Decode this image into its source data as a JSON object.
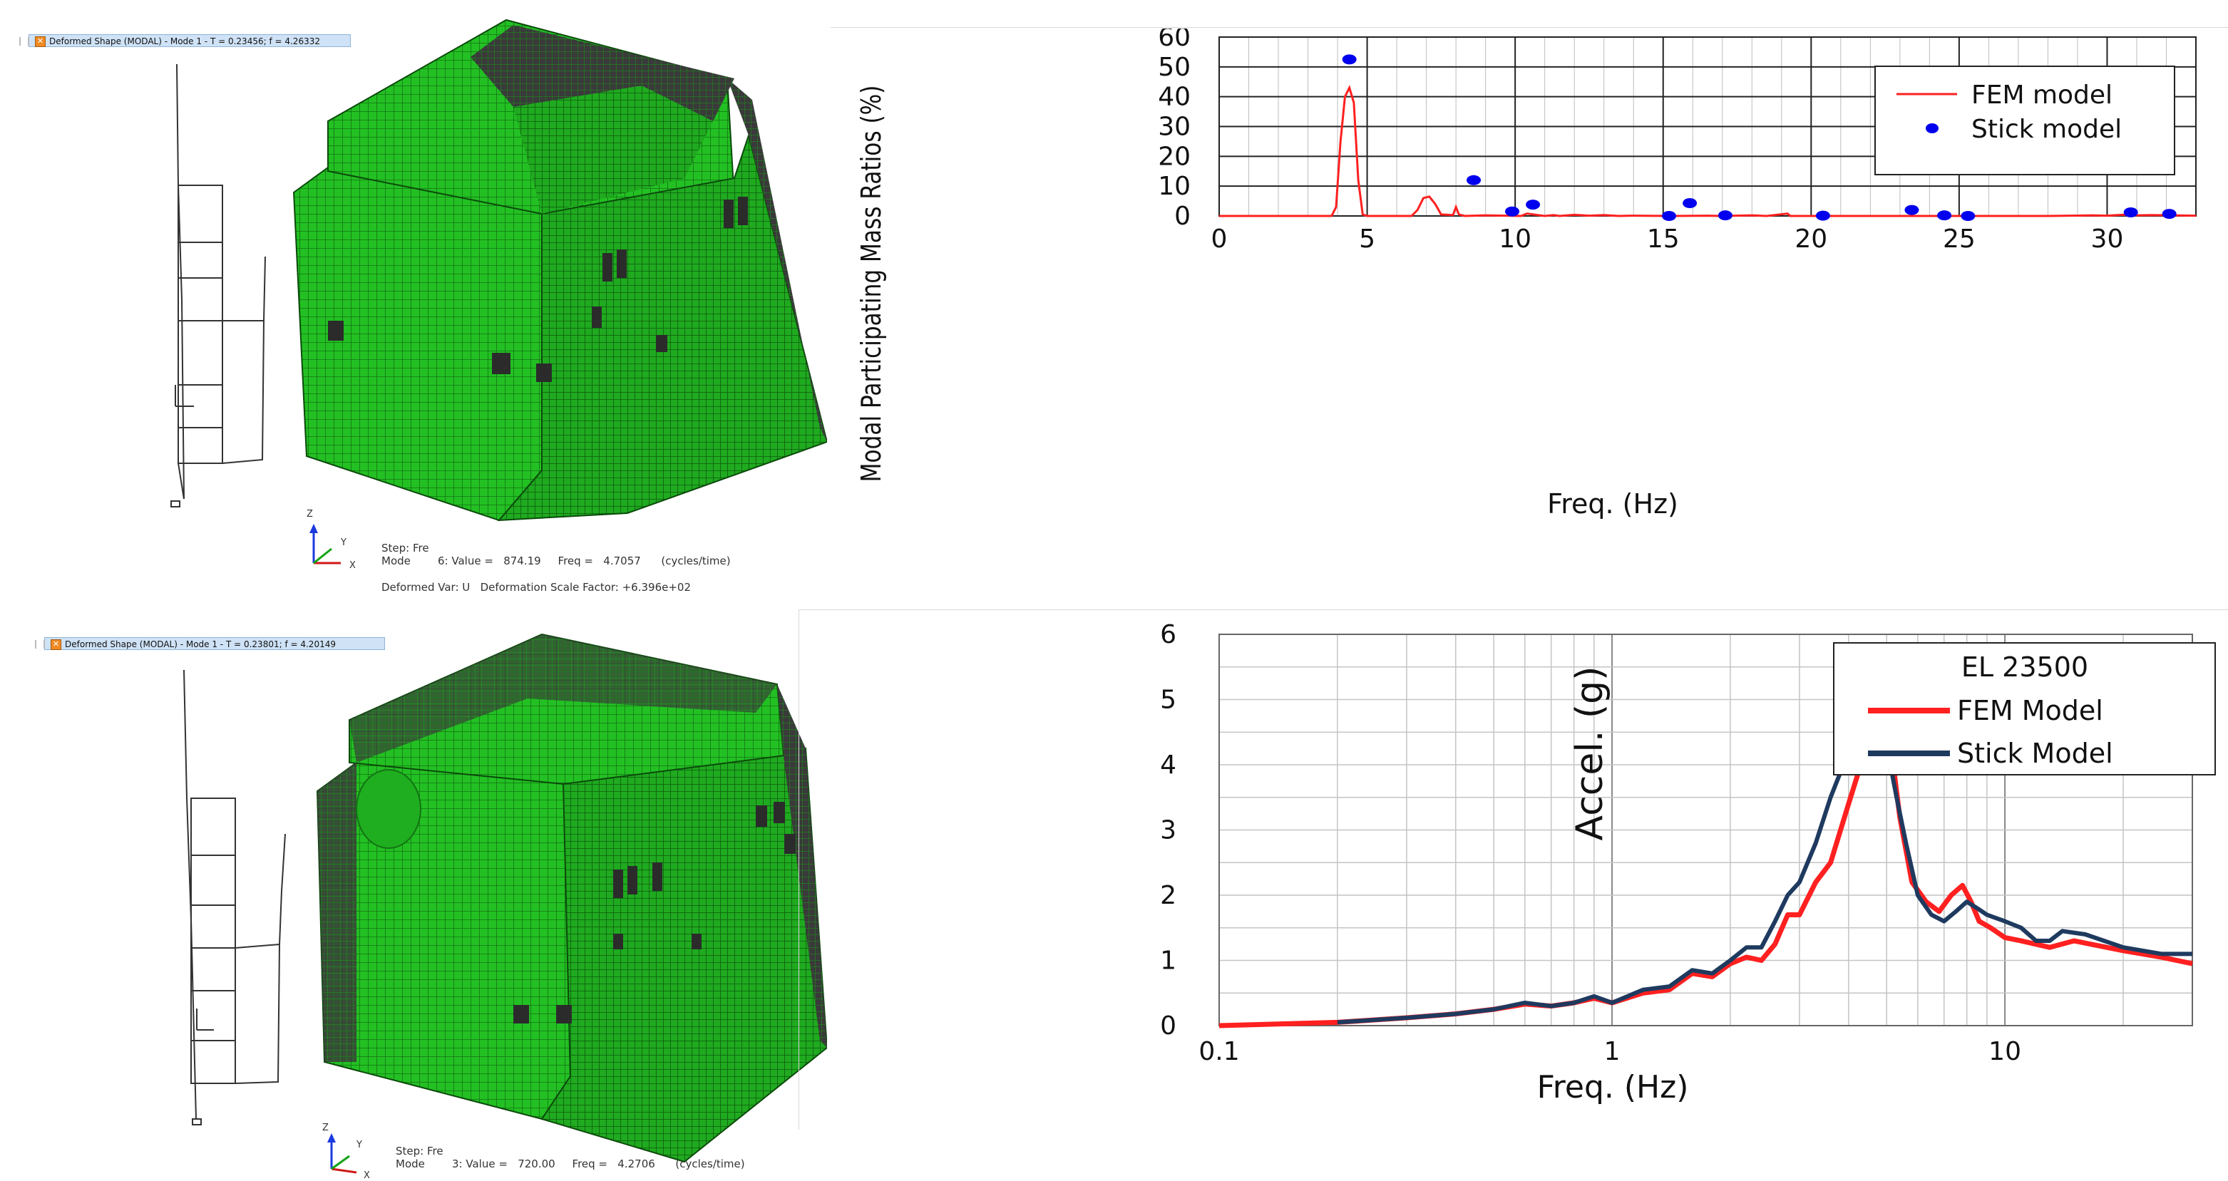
{
  "panels": [
    {
      "title_bar": "Deformed Shape (MODAL) - Mode 1 - T = 0.23456; f = 4.26332",
      "axis_letters": {
        "z": "Z",
        "y": "Y",
        "x": "X"
      },
      "step_line": "Step: Fre",
      "mode_line": "Mode        6: Value =   874.19     Freq =   4.7057      (cycles/time)",
      "deformed_line": "Deformed Var: U   Deformation Scale Factor: +6.396e+02"
    },
    {
      "title_bar": "Deformed Shape (MODAL) - Mode 1 - T = 0.23801; f = 4.20149",
      "axis_letters": {
        "z": "Z",
        "y": "Y",
        "x": "X"
      },
      "step_line": "Step: Fre",
      "mode_line": "Mode        3: Value =   720.00     Freq =   4.2706      (cycles/time)"
    }
  ],
  "colors": {
    "fem": "#ff2020",
    "stick_dot": "#0000ee",
    "stick_line": "#1f3a5f",
    "mesh": "#22bb22",
    "mesh_dark": "#176f17"
  },
  "chart_data": [
    {
      "type": "line",
      "xlabel": "Freq. (Hz)",
      "ylabel": "Modal Participating Mass Ratios (%)",
      "xlim": [
        0,
        33
      ],
      "ylim": [
        0,
        60
      ],
      "xticks": [
        "0",
        "5",
        "10",
        "15",
        "20",
        "25",
        "30"
      ],
      "yticks": [
        "0",
        "10",
        "20",
        "30",
        "40",
        "50",
        "60"
      ],
      "grid": true,
      "legend_position": "top-right",
      "series": [
        {
          "name": "FEM model",
          "style": "line",
          "x": [
            0,
            3.8,
            3.95,
            4.1,
            4.25,
            4.4,
            4.55,
            4.7,
            4.85,
            5.0,
            6.5,
            6.7,
            6.9,
            7.1,
            7.3,
            7.5,
            7.9,
            8.0,
            8.1,
            8.3,
            9,
            10.2,
            10.4,
            11,
            11.3,
            11.5,
            12,
            12.5,
            13,
            13.5,
            14,
            15.3,
            16.5,
            17,
            18,
            18.5,
            19.2,
            19.3,
            20,
            22,
            25,
            28,
            29.5,
            30,
            30.5,
            31,
            31.5,
            33
          ],
          "y": [
            0,
            0,
            3,
            25,
            40,
            43,
            38,
            12,
            0.5,
            0,
            0,
            2,
            6,
            6.5,
            4,
            0.5,
            0.3,
            3,
            0.5,
            0,
            0.2,
            0,
            0.8,
            0,
            0.3,
            0,
            0.4,
            0.1,
            0.3,
            0,
            0.1,
            0,
            0.1,
            0,
            0.2,
            0,
            0.8,
            0,
            0,
            0,
            0,
            0,
            0.2,
            0.1,
            0.4,
            0.2,
            0.3,
            0.1
          ]
        },
        {
          "name": "Stick model",
          "style": "marker",
          "x": [
            4.4,
            8.6,
            9.9,
            10.6,
            15.2,
            15.9,
            17.1,
            20.4,
            23.4,
            24.5,
            25.3,
            30.8,
            32.1
          ],
          "y": [
            52.5,
            12,
            1.5,
            3.8,
            0,
            4.3,
            0.2,
            0.1,
            2,
            0.2,
            0,
            1.2,
            0.7
          ]
        }
      ]
    },
    {
      "type": "line",
      "xscale": "log",
      "xlabel": "Freq. (Hz)",
      "ylabel": "Accel. (g)",
      "xlim": [
        0.1,
        30
      ],
      "ylim": [
        0,
        6
      ],
      "xticks": [
        "0.1",
        "1",
        "10"
      ],
      "yticks": [
        "0",
        "1",
        "2",
        "3",
        "4",
        "5",
        "6"
      ],
      "grid": true,
      "legend_title": "EL 23500",
      "legend_position": "top-left",
      "series": [
        {
          "name": "FEM Model",
          "x": [
            0.1,
            0.2,
            0.3,
            0.4,
            0.5,
            0.6,
            0.7,
            0.8,
            0.9,
            1.0,
            1.2,
            1.4,
            1.6,
            1.8,
            2.0,
            2.2,
            2.4,
            2.6,
            2.8,
            3.0,
            3.3,
            3.6,
            4.0,
            4.4,
            4.7,
            4.9,
            5.1,
            5.4,
            5.8,
            6.3,
            6.8,
            7.3,
            7.8,
            8.2,
            8.6,
            9.2,
            10,
            11,
            13,
            15,
            20,
            25,
            30
          ],
          "y": [
            0,
            0.05,
            0.12,
            0.18,
            0.25,
            0.33,
            0.3,
            0.35,
            0.42,
            0.35,
            0.5,
            0.55,
            0.8,
            0.75,
            0.95,
            1.05,
            1.0,
            1.25,
            1.7,
            1.7,
            2.2,
            2.5,
            3.4,
            4.2,
            4.85,
            4.9,
            4.4,
            3.2,
            2.2,
            1.9,
            1.75,
            2.0,
            2.15,
            1.9,
            1.6,
            1.5,
            1.35,
            1.3,
            1.2,
            1.3,
            1.15,
            1.05,
            0.95
          ]
        },
        {
          "name": "Stick Model",
          "x": [
            0.2,
            0.3,
            0.4,
            0.5,
            0.6,
            0.7,
            0.8,
            0.9,
            1.0,
            1.2,
            1.4,
            1.6,
            1.8,
            2.0,
            2.2,
            2.4,
            2.6,
            2.8,
            3.0,
            3.3,
            3.6,
            4.0,
            4.4,
            4.6,
            4.8,
            5.0,
            5.3,
            5.6,
            6.0,
            6.5,
            7.0,
            7.5,
            8.0,
            8.5,
            9.0,
            10,
            11,
            12,
            13,
            14,
            16,
            20,
            25,
            30
          ],
          "y": [
            0.05,
            0.12,
            0.18,
            0.25,
            0.35,
            0.3,
            0.35,
            0.45,
            0.35,
            0.55,
            0.6,
            0.85,
            0.8,
            1.0,
            1.2,
            1.2,
            1.6,
            2.0,
            2.2,
            2.8,
            3.5,
            4.2,
            4.7,
            4.8,
            4.6,
            4.3,
            3.5,
            2.8,
            2.0,
            1.7,
            1.6,
            1.75,
            1.9,
            1.8,
            1.7,
            1.6,
            1.5,
            1.3,
            1.3,
            1.45,
            1.4,
            1.2,
            1.1,
            1.1
          ]
        }
      ]
    }
  ]
}
